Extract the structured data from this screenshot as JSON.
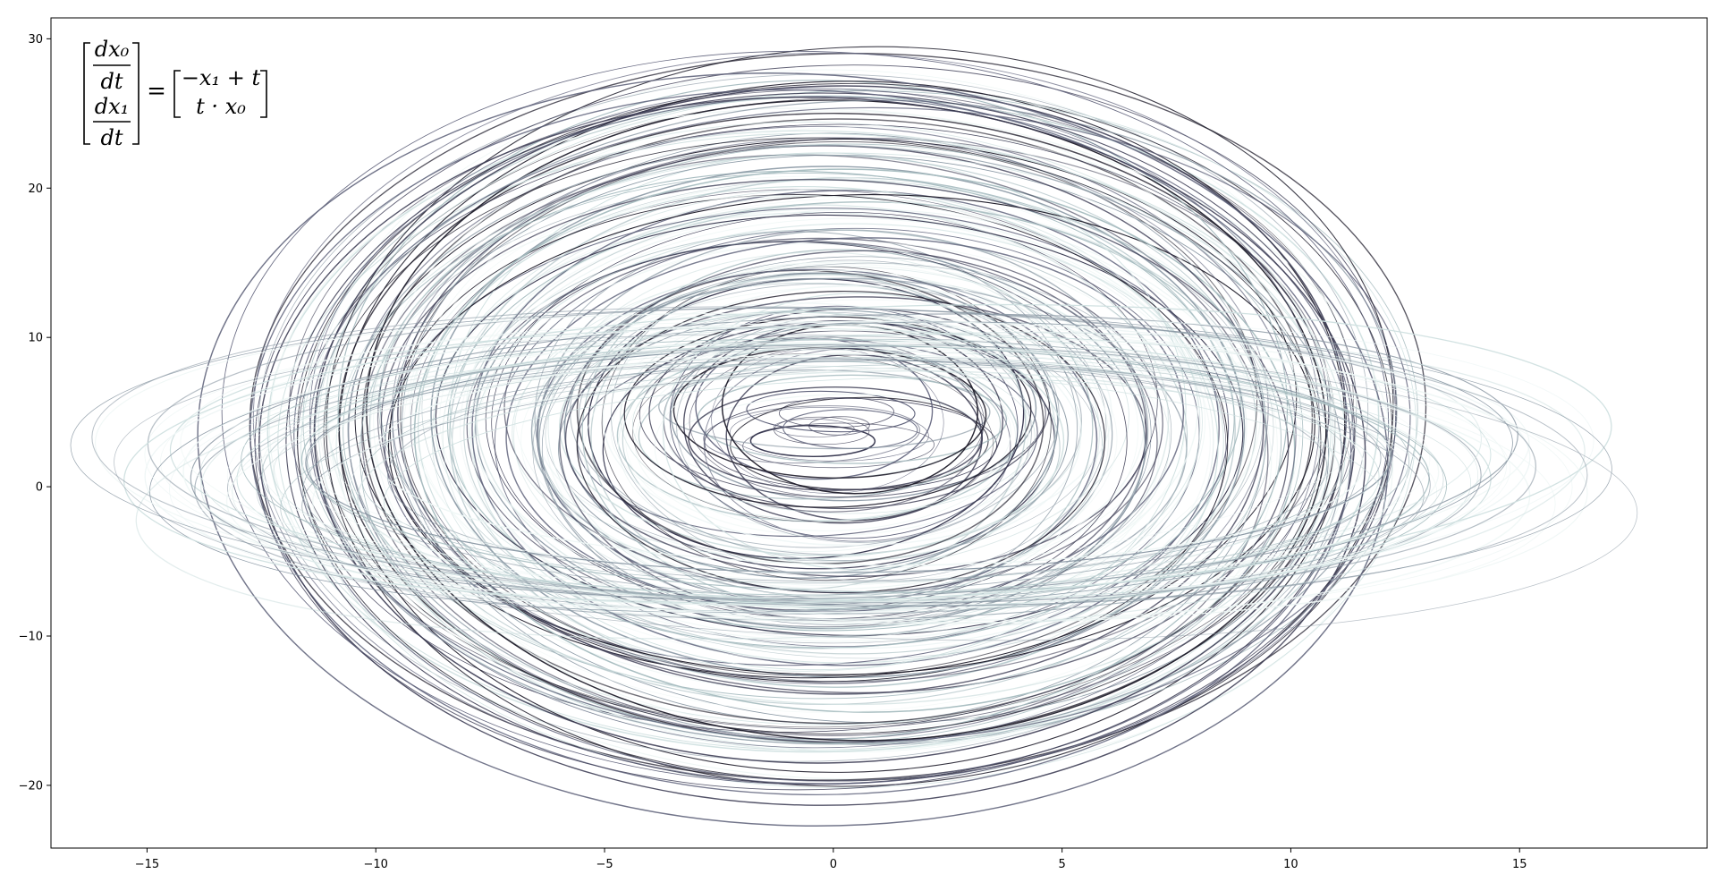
{
  "chart_data": {
    "type": "line",
    "title": "",
    "xlabel": "",
    "ylabel": "",
    "xlim": [
      -17.1,
      19.1
    ],
    "ylim": [
      -24.2,
      31.4
    ],
    "x_ticks": [
      -15,
      -10,
      -5,
      0,
      5,
      10,
      15
    ],
    "y_ticks": [
      -20,
      -10,
      0,
      10,
      20,
      30
    ],
    "x_tick_labels": [
      "−15",
      "−10",
      "−5",
      "0",
      "5",
      "10",
      "15"
    ],
    "y_tick_labels": [
      "−20",
      "−10",
      "0",
      "10",
      "20",
      "30"
    ],
    "grid": false,
    "legend": "none",
    "colormap": [
      "#1f1d2b",
      "#3a3a52",
      "#5d6079",
      "#8a98a4",
      "#a7bcc0",
      "#cfe0e0",
      "#eef6f5"
    ],
    "annotation": {
      "lhs_top_num": "dx₀",
      "lhs_top_den": "dt",
      "lhs_bot_num": "dx₁",
      "lhs_bot_den": "dt",
      "equals": "=",
      "rhs_top": "−x₁ + t",
      "rhs_bottom": "t · x₀",
      "position": "top-left"
    },
    "series": [
      {
        "center": [
          0,
          4
        ],
        "rx_range": [
          0.5,
          2.5
        ],
        "ry_range": [
          0.4,
          2.0
        ],
        "count": 10,
        "tone": "dark"
      },
      {
        "center": [
          0,
          4
        ],
        "rx_range": [
          2,
          13
        ],
        "ry_range": [
          2,
          25
        ],
        "count": 150,
        "tone": "mixed"
      },
      {
        "center": [
          -0.6,
          3.5
        ],
        "rx_range": [
          11,
          13.2
        ],
        "ry_range": [
          22,
          25.2
        ],
        "count": 10,
        "tone": "dark"
      },
      {
        "center": [
          0.5,
          1
        ],
        "rx_range": [
          10,
          17
        ],
        "ry_range": [
          7,
          10.5
        ],
        "count": 45,
        "tone": "light"
      }
    ]
  }
}
